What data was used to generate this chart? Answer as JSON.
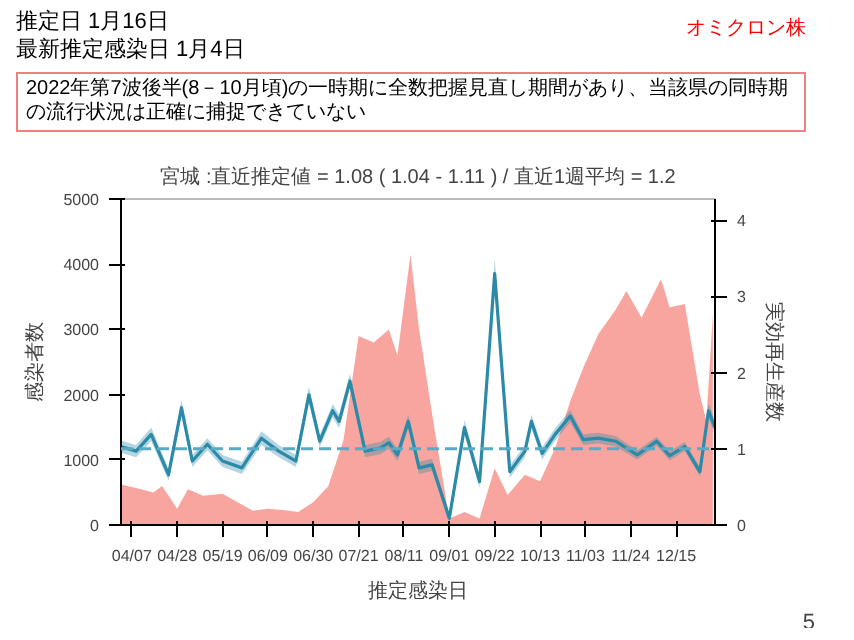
{
  "chart_data": {
    "type": "area",
    "title": "宮城 :直近推定値 = 1.08 ( 1.04 - 1.11 ) / 直近1週平均 = 1.2",
    "xlabel": "推定感染日",
    "ylabel": "感染者数",
    "y2label": "実効再生産数",
    "annotations": [
      "推定日  1月16日",
      "最新推定感染日  1月4日",
      "オミクロン株",
      "2022年第7波後半(8－10月頃)の一時期に全数把握見直し期間があり、当該県の同時期の流行状況は正確に捕捉できていない",
      "5"
    ],
    "xlim": [
      "2022-04-02",
      "2023-01-02"
    ],
    "xticks": [
      {
        "value": "2022-04-07",
        "label": "04/07"
      },
      {
        "value": "2022-04-28",
        "label": "04/28"
      },
      {
        "value": "2022-05-19",
        "label": "05/19"
      },
      {
        "value": "2022-06-09",
        "label": "06/09"
      },
      {
        "value": "2022-06-30",
        "label": "06/30"
      },
      {
        "value": "2022-07-21",
        "label": "07/21"
      },
      {
        "value": "2022-08-11",
        "label": "08/11"
      },
      {
        "value": "2022-09-01",
        "label": "09/01"
      },
      {
        "value": "2022-09-22",
        "label": "09/22"
      },
      {
        "value": "2022-10-13",
        "label": "10/13"
      },
      {
        "value": "2022-11-03",
        "label": "11/03"
      },
      {
        "value": "2022-11-24",
        "label": "11/24"
      },
      {
        "value": "2022-12-15",
        "label": "12/15"
      }
    ],
    "ylim": [
      0,
      5000
    ],
    "yticks": [
      0,
      1000,
      2000,
      3000,
      4000,
      5000
    ],
    "y2lim": [
      0,
      4.28
    ],
    "y2ticks": [
      0,
      1,
      2,
      3,
      4
    ],
    "grid": false,
    "ref_lines": [
      {
        "axis": "y2",
        "value": 1,
        "label": null,
        "color": "#5aaac4",
        "line_style": "dashed"
      }
    ],
    "series": [
      {
        "color": "#f7958e",
        "x": [
          "2022-04-02",
          "2022-04-10",
          "2022-04-17",
          "2022-04-21",
          "2022-04-28",
          "2022-05-03",
          "2022-05-10",
          "2022-05-19",
          "2022-05-26",
          "2022-06-02",
          "2022-06-09",
          "2022-06-16",
          "2022-06-23",
          "2022-06-30",
          "2022-07-07",
          "2022-07-14",
          "2022-07-21",
          "2022-07-28",
          "2022-08-04",
          "2022-08-08",
          "2022-08-14",
          "2022-08-18",
          "2022-08-25",
          "2022-09-01",
          "2022-09-08",
          "2022-09-15",
          "2022-09-22",
          "2022-09-28",
          "2022-10-06",
          "2022-10-13",
          "2022-10-20",
          "2022-10-27",
          "2022-11-02",
          "2022-11-09",
          "2022-11-17",
          "2022-11-22",
          "2022-11-29",
          "2022-12-08",
          "2022-12-12",
          "2022-12-19",
          "2022-12-26",
          "2022-12-29",
          "2023-01-01"
        ],
        "values": [
          620,
          560,
          500,
          600,
          250,
          550,
          450,
          480,
          350,
          220,
          250,
          230,
          200,
          350,
          600,
          1300,
          2900,
          2800,
          3000,
          2600,
          4150,
          3000,
          1500,
          100,
          200,
          100,
          870,
          460,
          770,
          670,
          1180,
          1900,
          2410,
          2930,
          3300,
          3590,
          3180,
          3770,
          3340,
          3390,
          2000,
          1600,
          3230
        ]
      },
      {
        "type": "line",
        "axis": "y2",
        "color": "#2a8aa8",
        "x": [
          "2022-04-02",
          "2022-04-09",
          "2022-04-16",
          "2022-04-24",
          "2022-04-30",
          "2022-05-05",
          "2022-05-12",
          "2022-05-19",
          "2022-05-28",
          "2022-06-06",
          "2022-06-14",
          "2022-06-22",
          "2022-06-28",
          "2022-07-03",
          "2022-07-09",
          "2022-07-12",
          "2022-07-17",
          "2022-07-24",
          "2022-07-31",
          "2022-08-04",
          "2022-08-08",
          "2022-08-13",
          "2022-08-18",
          "2022-08-24",
          "2022-09-01",
          "2022-09-08",
          "2022-09-15",
          "2022-09-22",
          "2022-09-29",
          "2022-10-06",
          "2022-10-09",
          "2022-10-14",
          "2022-10-20",
          "2022-10-27",
          "2022-11-02",
          "2022-11-09",
          "2022-11-17",
          "2022-11-27",
          "2022-12-06",
          "2022-12-12",
          "2022-12-19",
          "2022-12-26",
          "2022-12-30",
          "2023-01-02"
        ],
        "values": [
          1.03,
          0.97,
          1.19,
          0.66,
          1.54,
          0.84,
          1.06,
          0.84,
          0.75,
          1.14,
          0.97,
          0.84,
          1.71,
          1.1,
          1.5,
          1.36,
          1.89,
          0.97,
          1.01,
          1.08,
          0.92,
          1.36,
          0.75,
          0.79,
          0.09,
          1.28,
          0.57,
          3.3,
          0.7,
          0.97,
          1.36,
          0.94,
          1.19,
          1.43,
          1.12,
          1.14,
          1.1,
          0.92,
          1.1,
          0.91,
          1.03,
          0.7,
          1.5,
          1.28
        ],
        "lower": [
          0.95,
          0.89,
          1.1,
          0.58,
          1.44,
          0.76,
          0.98,
          0.76,
          0.67,
          1.05,
          0.89,
          0.76,
          1.6,
          1.02,
          1.41,
          1.27,
          1.79,
          0.89,
          0.93,
          1.0,
          0.84,
          1.27,
          0.67,
          0.71,
          0.03,
          1.18,
          0.49,
          3.1,
          0.62,
          0.89,
          1.27,
          0.86,
          1.11,
          1.35,
          1.05,
          1.07,
          1.03,
          0.86,
          1.04,
          0.85,
          0.97,
          0.64,
          1.4,
          1.18
        ],
        "upper": [
          1.11,
          1.05,
          1.28,
          0.74,
          1.64,
          0.92,
          1.14,
          0.92,
          0.83,
          1.23,
          1.05,
          0.92,
          1.82,
          1.18,
          1.59,
          1.45,
          1.99,
          1.05,
          1.09,
          1.16,
          1.0,
          1.45,
          0.83,
          0.87,
          0.15,
          1.38,
          0.65,
          3.5,
          0.78,
          1.05,
          1.45,
          1.02,
          1.27,
          1.51,
          1.19,
          1.21,
          1.17,
          0.98,
          1.16,
          0.97,
          1.09,
          0.76,
          1.6,
          1.38
        ]
      }
    ]
  }
}
